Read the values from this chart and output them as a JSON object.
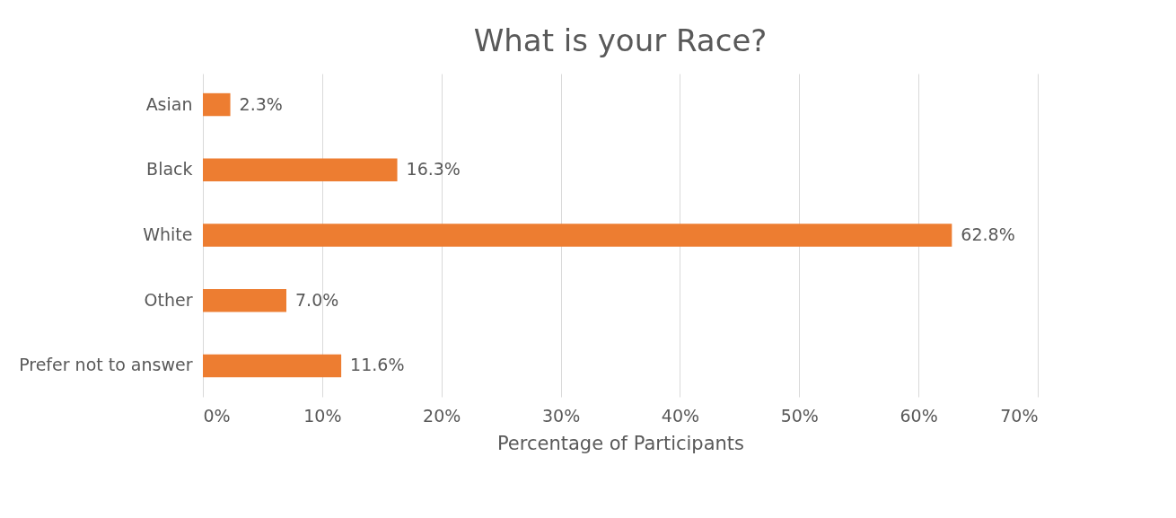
{
  "chart_data": {
    "type": "bar",
    "orientation": "horizontal",
    "title": "What is your Race?",
    "xlabel": "Percentage of Participants",
    "categories": [
      "Asian",
      "Black",
      "White",
      "Other",
      "Prefer not to answer"
    ],
    "values": [
      2.3,
      16.3,
      62.8,
      7.0,
      11.6
    ],
    "value_labels": [
      "2.3%",
      "16.3%",
      "62.8%",
      "7.0%",
      "11.6%"
    ],
    "color": "#ed7d31",
    "xlim": [
      0,
      70
    ],
    "xticks": [
      {
        "value": 0,
        "label": "0%"
      },
      {
        "value": 10,
        "label": "10%"
      },
      {
        "value": 20,
        "label": "20%"
      },
      {
        "value": 30,
        "label": "30%"
      },
      {
        "value": 40,
        "label": "40%"
      },
      {
        "value": 50,
        "label": "50%"
      },
      {
        "value": 60,
        "label": "60%"
      },
      {
        "value": 70,
        "label": "70%"
      }
    ],
    "grid": "x"
  }
}
